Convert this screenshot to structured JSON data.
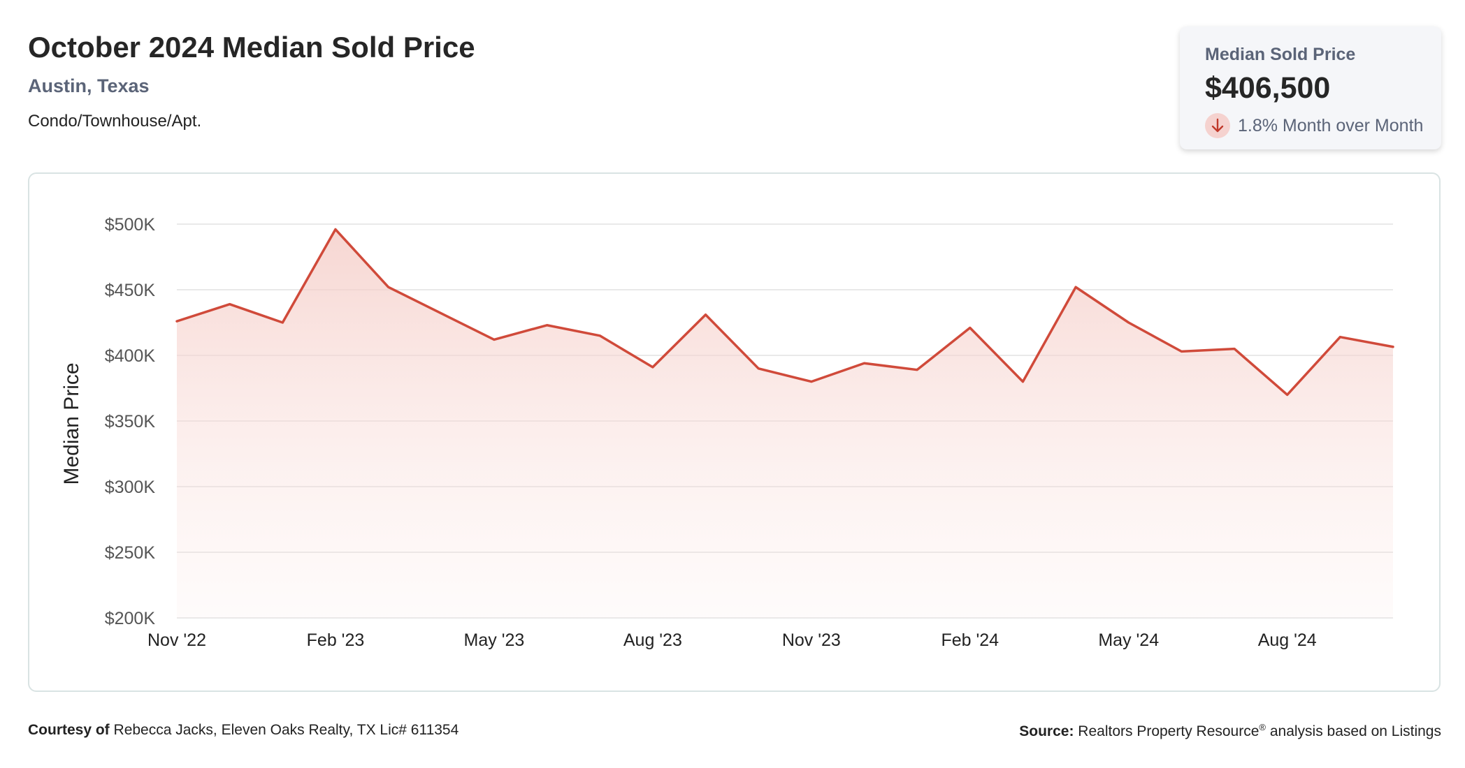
{
  "header": {
    "title": "October 2024 Median Sold Price",
    "location": "Austin, Texas",
    "property_type": "Condo/Townhouse/Apt."
  },
  "kpi": {
    "label": "Median Sold Price",
    "value": "$406,500",
    "change_text": "1.8% Month over Month",
    "direction": "down",
    "direction_icon": "arrow-down-icon"
  },
  "colors": {
    "line": "#d04a3a",
    "fill": "#f5cfca",
    "grid": "#e2e2e2",
    "label": "#5b6478"
  },
  "chart_data": {
    "type": "area",
    "ylabel": "Median Price",
    "xlabel": "",
    "title": "",
    "ylim": [
      200000,
      500000
    ],
    "y_ticks": [
      200000,
      250000,
      300000,
      350000,
      400000,
      450000,
      500000
    ],
    "y_tick_labels": [
      "$200K",
      "$250K",
      "$300K",
      "$350K",
      "$400K",
      "$450K",
      "$500K"
    ],
    "x_tick_labels": [
      {
        "label": "Nov '22",
        "index": 0
      },
      {
        "label": "Feb '23",
        "index": 3
      },
      {
        "label": "May '23",
        "index": 6
      },
      {
        "label": "Aug '23",
        "index": 9
      },
      {
        "label": "Nov '23",
        "index": 12
      },
      {
        "label": "Feb '24",
        "index": 15
      },
      {
        "label": "May '24",
        "index": 18
      },
      {
        "label": "Aug '24",
        "index": 21
      }
    ],
    "grid": true,
    "series": [
      {
        "months": [
          "Nov '22",
          "Dec '22",
          "Jan '23",
          "Feb '23",
          "Mar '23",
          "Apr '23",
          "May '23",
          "Jun '23",
          "Jul '23",
          "Aug '23",
          "Sep '23",
          "Oct '23",
          "Nov '23",
          "Dec '23",
          "Jan '24",
          "Feb '24",
          "Mar '24",
          "Apr '24",
          "May '24",
          "Jun '24",
          "Jul '24",
          "Aug '24",
          "Sep '24",
          "Oct '24"
        ],
        "values": [
          426000,
          439000,
          425000,
          496000,
          452000,
          432000,
          412000,
          423000,
          415000,
          391000,
          431000,
          390000,
          380000,
          394000,
          389000,
          421000,
          380000,
          452000,
          425000,
          403000,
          405000,
          370000,
          414000,
          406500
        ]
      }
    ]
  },
  "footer": {
    "courtesy_label": "Courtesy of",
    "courtesy_text": "Rebecca Jacks, Eleven Oaks Realty, TX Lic# 611354",
    "source_label": "Source:",
    "source_text_1": "Realtors Property Resource",
    "source_reg": "®",
    "source_text_2": " analysis based on Listings"
  }
}
